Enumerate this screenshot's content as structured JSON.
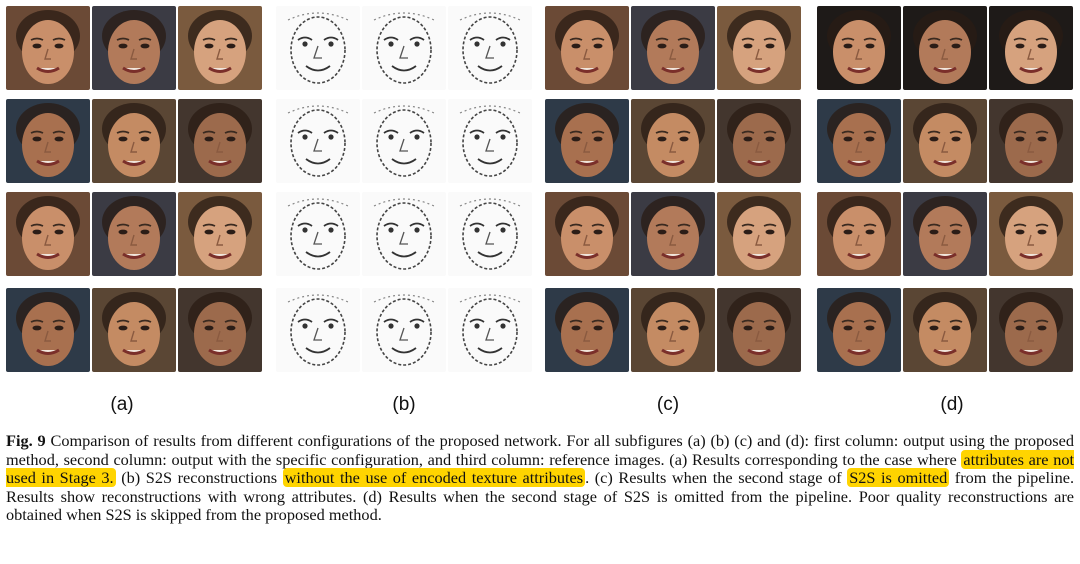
{
  "figure": {
    "subfigure_labels": [
      "(a)",
      "(b)",
      "(c)",
      "(d)"
    ],
    "highlight_color": "#ffd400",
    "caption": {
      "label": "Fig. 9",
      "parts": [
        " Comparison of results from different configurations of the proposed network. For all subfigures (a) (b) (c) and (d): first column: output using the proposed method, second column: output with the specific configuration, and third column: reference images. (a) Results corresponding to the case where ",
        "attributes are not used in Stage 3.",
        " (b) S2S reconstructions ",
        "without the use of encoded texture attributes",
        ". (c) Results when the second stage of ",
        "S2S is omitted",
        " from the pipeline. Results show reconstructions with wrong attributes. (d) Results when the second stage of S2S is omitted from the pipeline. Poor quality reconstructions are obtained when S2S is skipped from the proposed method."
      ]
    }
  }
}
